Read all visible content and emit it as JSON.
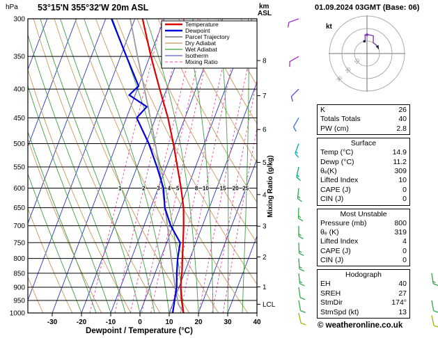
{
  "header": {
    "station": "53°15'N 355°32'W 20m ASL",
    "date": "01.09.2024 03GMT (Base: 06)",
    "pressure_unit": "hPa",
    "km_label": "km ASL"
  },
  "footer": {
    "copyright": "© weatheronline.co.uk"
  },
  "chart_data": {
    "type": "skewt-log-p",
    "title": "53°15'N 355°32'W 20m ASL",
    "xlabel": "Dewpoint / Temperature (°C)",
    "mixing_ratio_label": "Mixing Ratio (g/kg)",
    "pressure_range": [
      300,
      1000
    ],
    "x_ticks": [
      -30,
      -20,
      -10,
      0,
      10,
      20,
      30,
      40
    ],
    "pressure_ticks": [
      300,
      350,
      400,
      450,
      500,
      550,
      600,
      650,
      700,
      750,
      800,
      850,
      900,
      950,
      1000
    ],
    "km_ticks": [
      {
        "km": 1,
        "p": 899
      },
      {
        "km": 2,
        "p": 795
      },
      {
        "km": 3,
        "p": 701
      },
      {
        "km": 4,
        "p": 616
      },
      {
        "km": 5,
        "p": 540
      },
      {
        "km": 6,
        "p": 472
      },
      {
        "km": 7,
        "p": 411
      },
      {
        "km": 8,
        "p": 356
      }
    ],
    "lcl": {
      "label": "LCL",
      "p": 965
    },
    "mixing_ratios": [
      1,
      2,
      3,
      4,
      5,
      8,
      10,
      15,
      20,
      25
    ],
    "colors": {
      "temperature": "#dd0000",
      "dewpoint": "#0000dd",
      "parcel": "#999999",
      "dry_adiabat": "#c8995a",
      "wet_adiabat": "#3fa045",
      "isotherm": "#2a35c8",
      "mixing_ratio": "#e8489c"
    },
    "legend": [
      {
        "label": "Temperature",
        "color": "#dd0000",
        "width": 2.4,
        "dash": null
      },
      {
        "label": "Dewpoint",
        "color": "#0000dd",
        "width": 2.4,
        "dash": null
      },
      {
        "label": "Parcel Trajectory",
        "color": "#999999",
        "width": 2,
        "dash": null
      },
      {
        "label": "Dry Adiabat",
        "color": "#c8995a",
        "width": 1.2,
        "dash": null
      },
      {
        "label": "Wet Adiabat",
        "color": "#3fa045",
        "width": 1.2,
        "dash": null
      },
      {
        "label": "Isotherm",
        "color": "#2a35c8",
        "width": 1,
        "dash": null
      },
      {
        "label": "Mixing Ratio",
        "color": "#e8489c",
        "width": 1,
        "dash": "4,3"
      }
    ],
    "temperature_profile": [
      [
        1000,
        14.9
      ],
      [
        950,
        12.6
      ],
      [
        925,
        11.6
      ],
      [
        900,
        10.6
      ],
      [
        875,
        9.8
      ],
      [
        850,
        9.2
      ],
      [
        800,
        7.4
      ],
      [
        750,
        5.6
      ],
      [
        700,
        3.6
      ],
      [
        650,
        1.2
      ],
      [
        600,
        -2.2
      ],
      [
        550,
        -6.2
      ],
      [
        500,
        -10.6
      ],
      [
        450,
        -15.8
      ],
      [
        400,
        -22.4
      ],
      [
        350,
        -29.6
      ],
      [
        300,
        -37.4
      ]
    ],
    "dewpoint_profile": [
      [
        1000,
        11.2
      ],
      [
        950,
        10.2
      ],
      [
        900,
        9.2
      ],
      [
        850,
        7.4
      ],
      [
        800,
        5.8
      ],
      [
        750,
        4.6
      ],
      [
        700,
        -0.8
      ],
      [
        650,
        -5.2
      ],
      [
        600,
        -8.2
      ],
      [
        550,
        -13.2
      ],
      [
        500,
        -19.0
      ],
      [
        450,
        -26.5
      ],
      [
        430,
        -24.5
      ],
      [
        410,
        -32.0
      ],
      [
        395,
        -30.0
      ],
      [
        350,
        -38.0
      ],
      [
        300,
        -48.0
      ]
    ],
    "parcel_profile": [
      [
        1000,
        14.9
      ],
      [
        965,
        12.0
      ],
      [
        900,
        8.7
      ],
      [
        850,
        6.2
      ],
      [
        800,
        3.6
      ],
      [
        750,
        0.9
      ],
      [
        700,
        -1.9
      ],
      [
        650,
        -5.1
      ],
      [
        600,
        -8.6
      ],
      [
        550,
        -12.4
      ],
      [
        500,
        -16.8
      ],
      [
        450,
        -21.8
      ],
      [
        400,
        -27.6
      ],
      [
        350,
        -34.2
      ],
      [
        300,
        -41.6
      ]
    ],
    "winds": [
      {
        "p": 300,
        "dir": 250,
        "spd": 10,
        "color": "#9b30c8"
      },
      {
        "p": 350,
        "dir": 240,
        "spd": 10,
        "color": "#9b30c8"
      },
      {
        "p": 400,
        "dir": 225,
        "spd": 10,
        "color": "#5a45d8"
      },
      {
        "p": 450,
        "dir": 210,
        "spd": 10,
        "color": "#2f6fd8"
      },
      {
        "p": 500,
        "dir": 200,
        "spd": 15,
        "color": "#00a8a8"
      },
      {
        "p": 550,
        "dir": 192,
        "spd": 15,
        "color": "#00a878"
      },
      {
        "p": 600,
        "dir": 186,
        "spd": 15,
        "color": "#2da84a"
      },
      {
        "p": 650,
        "dir": 182,
        "spd": 15,
        "color": "#2da84a"
      },
      {
        "p": 700,
        "dir": 180,
        "spd": 15,
        "color": "#2da84a"
      },
      {
        "p": 750,
        "dir": 178,
        "spd": 15,
        "color": "#2da84a"
      },
      {
        "p": 800,
        "dir": 176,
        "spd": 15,
        "color": "#2da84a"
      },
      {
        "p": 850,
        "dir": 174,
        "spd": 15,
        "color": "#2da84a"
      },
      {
        "p": 900,
        "dir": 172,
        "spd": 10,
        "color": "#2da84a"
      },
      {
        "p": 950,
        "dir": 170,
        "spd": 10,
        "color": "#2da84a"
      },
      {
        "p": 1000,
        "dir": 168,
        "spd": 10,
        "color": "#9ab800"
      }
    ],
    "winds_right": [
      {
        "p": 850,
        "dir": 172,
        "spd": 15,
        "color": "#2da84a"
      },
      {
        "p": 950,
        "dir": 170,
        "spd": 10,
        "color": "#2da84a"
      },
      {
        "p": 1010,
        "dir": 168,
        "spd": 10,
        "color": "#9ab800"
      }
    ]
  },
  "hodograph": {
    "unit_label": "kt",
    "rings_kt": [
      10,
      20,
      30
    ],
    "ring_labels": [
      "10",
      "20",
      "30"
    ],
    "storm": {
      "dir": "174°",
      "spd_kt": 13
    }
  },
  "panel": {
    "sections": [
      {
        "header": null,
        "rows": [
          [
            "K",
            "26"
          ],
          [
            "Totals Totals",
            "40"
          ],
          [
            "PW (cm)",
            "2.8"
          ]
        ]
      },
      {
        "header": "Surface",
        "rows": [
          [
            "Temp (°C)",
            "14.9"
          ],
          [
            "Dewp (°C)",
            "11.2"
          ],
          [
            "θₑ(K)",
            "309"
          ],
          [
            "Lifted Index",
            "10"
          ],
          [
            "CAPE (J)",
            "0"
          ],
          [
            "CIN (J)",
            "0"
          ]
        ]
      },
      {
        "header": "Most Unstable",
        "rows": [
          [
            "Pressure (mb)",
            "800"
          ],
          [
            "θₑ (K)",
            "319"
          ],
          [
            "Lifted Index",
            "4"
          ],
          [
            "CAPE (J)",
            "0"
          ],
          [
            "CIN (J)",
            "0"
          ]
        ]
      },
      {
        "header": "Hodograph",
        "rows": [
          [
            "EH",
            "40"
          ],
          [
            "SREH",
            "27"
          ],
          [
            "StmDir",
            "174°"
          ],
          [
            "StmSpd (kt)",
            "13"
          ]
        ]
      }
    ]
  }
}
